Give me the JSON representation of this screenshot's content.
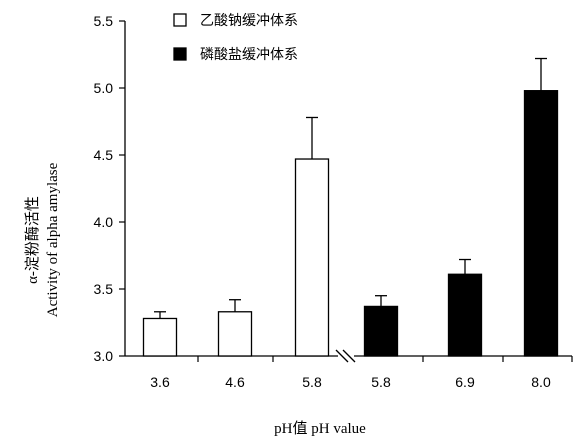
{
  "chart_data": {
    "type": "bar",
    "title": "",
    "xlabel": "pH值 pH value",
    "ylabel_cn": "α-淀粉酶活性",
    "ylabel_en": "Activity of alpha amylase",
    "ylim": [
      3.0,
      5.5
    ],
    "yticks": [
      "3.0",
      "3.5",
      "4.0",
      "4.5",
      "5.0",
      "5.5"
    ],
    "grid": false,
    "axis_break": true,
    "legend_position": "top-left",
    "categories": [
      "3.6",
      "4.6",
      "5.8",
      "5.8",
      "6.9",
      "8.0"
    ],
    "series": [
      {
        "name": "乙酸钠缓冲体系",
        "fill": "#ffffff",
        "values": [
          3.28,
          3.33,
          4.47,
          null,
          null,
          null
        ],
        "errors": [
          0.05,
          0.09,
          0.31,
          null,
          null,
          null
        ]
      },
      {
        "name": "磷酸盐缓冲体系",
        "fill": "#000000",
        "values": [
          null,
          null,
          null,
          3.37,
          3.61,
          4.98
        ],
        "errors": [
          null,
          null,
          null,
          0.08,
          0.11,
          0.24
        ]
      }
    ]
  }
}
